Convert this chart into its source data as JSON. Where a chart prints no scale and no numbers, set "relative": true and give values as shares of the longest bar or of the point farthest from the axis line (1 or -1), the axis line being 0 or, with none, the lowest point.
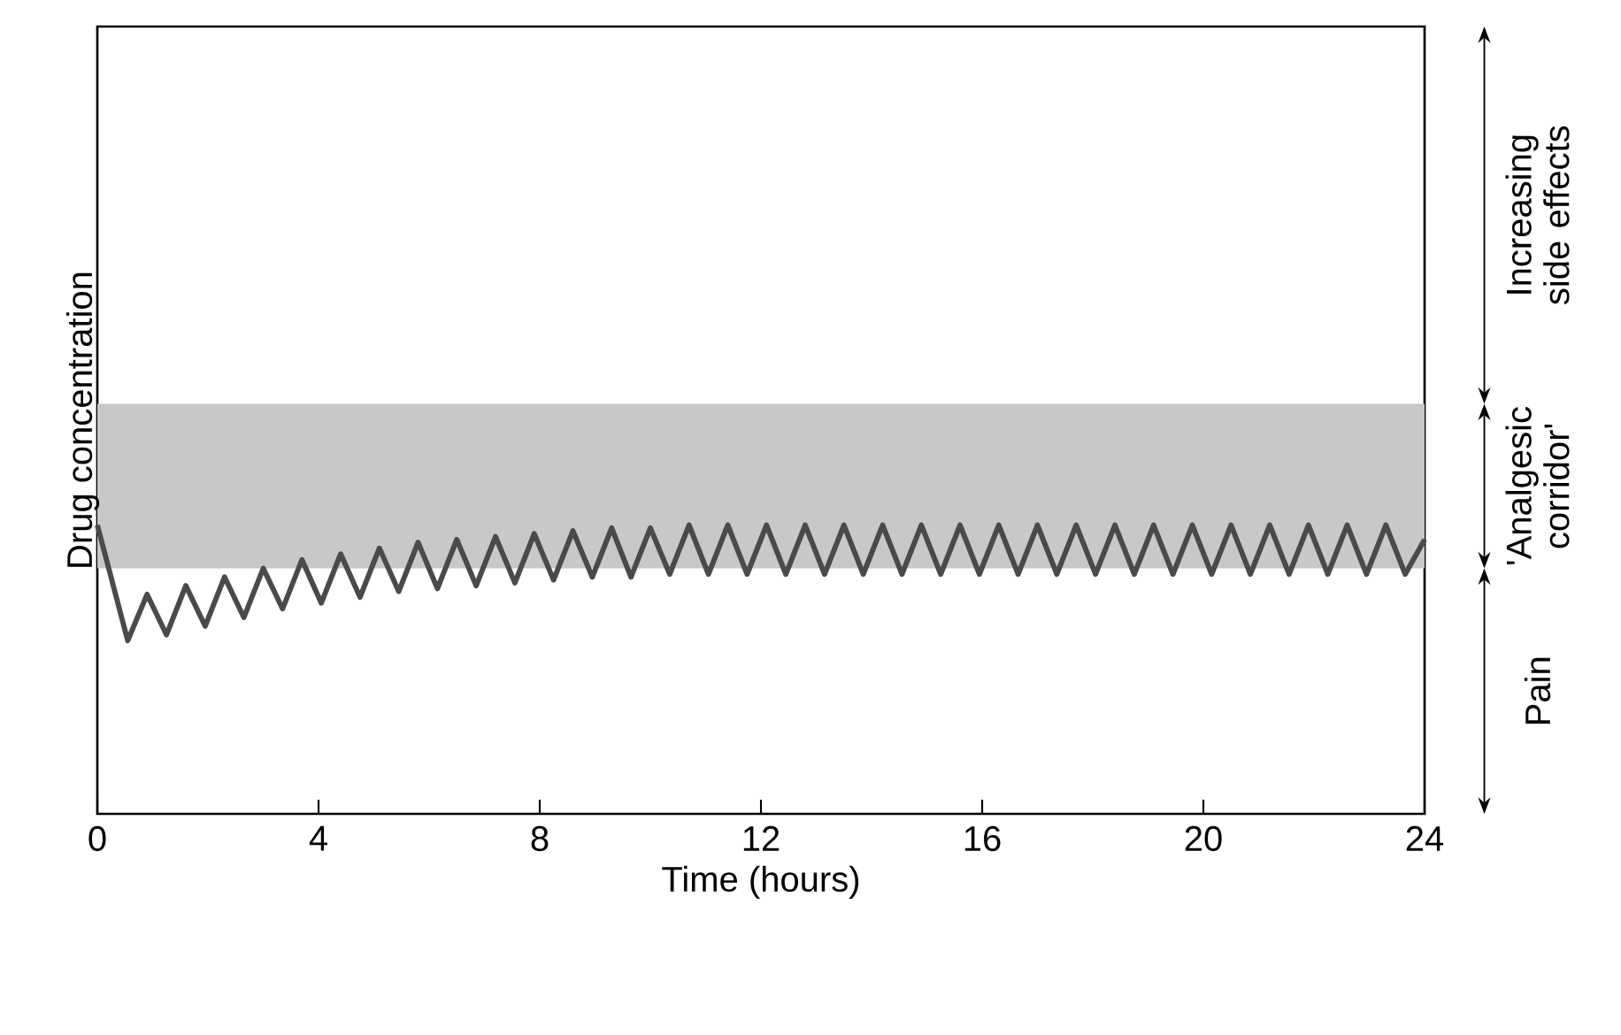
{
  "chart_data": {
    "type": "line",
    "xlabel": "Time (hours)",
    "ylabel": "Drug concentration",
    "relative": true,
    "xlim": [
      0,
      24
    ],
    "xticks": [
      0,
      4,
      8,
      12,
      16,
      20,
      24
    ],
    "x": [
      0,
      0.55,
      0.9,
      1.25,
      1.6,
      1.95,
      2.3,
      2.65,
      3.0,
      3.35,
      3.7,
      4.05,
      4.4,
      4.75,
      5.1,
      5.45,
      5.8,
      6.15,
      6.5,
      6.85,
      7.2,
      7.55,
      7.9,
      8.25,
      8.6,
      8.95,
      9.3,
      9.65,
      10.0,
      10.35,
      10.7,
      11.05,
      11.4,
      11.75,
      12.1,
      12.45,
      12.8,
      13.15,
      13.5,
      13.85,
      14.2,
      14.55,
      14.9,
      15.25,
      15.6,
      15.95,
      16.3,
      16.65,
      17.0,
      17.35,
      17.7,
      18.05,
      18.4,
      18.75,
      19.1,
      19.45,
      19.8,
      20.15,
      20.5,
      20.85,
      21.2,
      21.55,
      21.9,
      22.25,
      22.6,
      22.95,
      23.3,
      23.65,
      24
    ],
    "series": [
      {
        "color": "#4a4a4a",
        "values": [
          1.0,
          0.6,
          0.76,
          0.62,
          0.79,
          0.65,
          0.82,
          0.68,
          0.85,
          0.71,
          0.88,
          0.73,
          0.9,
          0.75,
          0.92,
          0.77,
          0.94,
          0.78,
          0.95,
          0.79,
          0.96,
          0.8,
          0.97,
          0.81,
          0.98,
          0.82,
          0.99,
          0.82,
          0.99,
          0.83,
          1.0,
          0.83,
          1.0,
          0.83,
          1.0,
          0.83,
          1.0,
          0.83,
          1.0,
          0.83,
          1.0,
          0.83,
          1.0,
          0.83,
          1.0,
          0.83,
          1.0,
          0.83,
          1.0,
          0.83,
          1.0,
          0.83,
          1.0,
          0.83,
          1.0,
          0.83,
          1.0,
          0.83,
          1.0,
          0.83,
          1.0,
          0.83,
          1.0,
          0.83,
          1.0,
          0.83,
          1.0,
          0.83,
          0.95
        ]
      }
    ],
    "bands": [
      {
        "axis": "y",
        "from": 0.85,
        "to": 1.42,
        "label": "'Analgesic corridor'",
        "color": "#c8c8c8"
      }
    ],
    "annotations": [
      "Increasing side effects",
      "Pain"
    ]
  }
}
